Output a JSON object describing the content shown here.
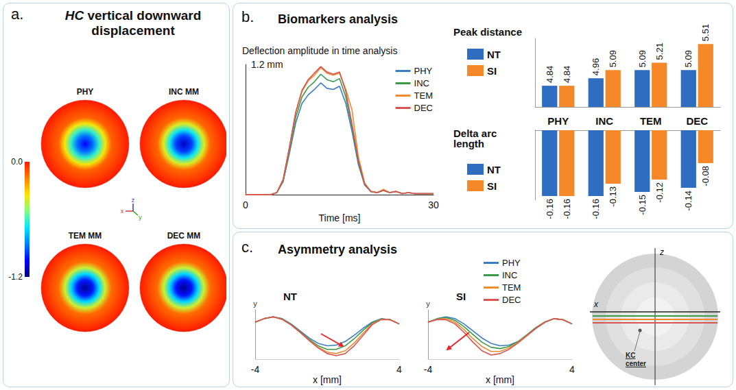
{
  "panels": [
    {
      "letter": "a.",
      "title": "HC vertical downward displacement"
    },
    {
      "letter": "b.",
      "title": "Biomarkers analysis"
    },
    {
      "letter": "c.",
      "title": "Asymmetry analysis"
    }
  ],
  "chart_data": [
    {
      "type": "heatmap",
      "discs": [
        {
          "name": "PHY",
          "value": -1.03
        },
        {
          "name": "INC MM",
          "value": -1.11
        },
        {
          "name": "TEM MM",
          "value": -1.17
        },
        {
          "name": "DEC MM",
          "value": -1.18
        }
      ],
      "colorbar": {
        "range": [
          -1.2,
          0
        ],
        "ticks": [
          {
            "value": 0,
            "label": "0.0"
          },
          -1.2
        ]
      },
      "axes": [
        "x",
        "y",
        "z"
      ]
    },
    {
      "type": "line",
      "title": "Deflection amplitude in time analysis",
      "x": [
        0,
        1,
        2,
        3,
        4,
        5,
        6,
        7,
        8,
        9,
        10,
        11,
        12,
        13,
        14,
        15,
        16,
        17,
        18,
        19,
        20,
        21,
        22,
        23,
        24,
        25,
        26,
        27,
        28,
        29,
        30
      ],
      "series": [
        {
          "name": "PHY",
          "color": "#3b7dc4",
          "values": [
            0,
            0,
            0,
            0,
            0,
            0.02,
            0.12,
            0.38,
            0.66,
            0.84,
            0.92,
            0.97,
            1.03,
            0.98,
            0.97,
            1.0,
            0.84,
            0.58,
            0.28,
            0.09,
            0.03,
            0.02,
            0.04,
            0.02,
            0.03,
            0.01,
            0.02,
            0.01,
            0.01,
            0.01,
            0.01
          ]
        },
        {
          "name": "INC",
          "color": "#3a9a48",
          "values": [
            0,
            0,
            0,
            0,
            0,
            0.02,
            0.13,
            0.41,
            0.71,
            0.9,
            0.99,
            1.04,
            1.11,
            1.06,
            1.04,
            1.07,
            0.9,
            0.62,
            0.3,
            0.1,
            0.03,
            0.02,
            0.04,
            0.02,
            0.03,
            0.01,
            0.02,
            0.01,
            0.01,
            0.01,
            0.01
          ]
        },
        {
          "name": "TEM",
          "color": "#f28a30",
          "values": [
            0,
            0,
            0,
            0,
            0,
            0.02,
            0.14,
            0.43,
            0.75,
            0.95,
            1.05,
            1.1,
            1.17,
            1.12,
            1.1,
            1.12,
            0.97,
            0.78,
            0.35,
            0.11,
            0.03,
            0.02,
            0.05,
            0.02,
            0.03,
            0.01,
            0.02,
            0.01,
            0.01,
            0.01,
            0.01
          ]
        },
        {
          "name": "DEC",
          "color": "#d9534f",
          "values": [
            0,
            0,
            0,
            0,
            0,
            0.02,
            0.14,
            0.44,
            0.76,
            0.96,
            1.06,
            1.12,
            1.18,
            1.13,
            1.11,
            1.13,
            0.95,
            0.65,
            0.32,
            0.1,
            0.03,
            0.02,
            0.04,
            0.02,
            0.03,
            0.01,
            0.02,
            0.01,
            0.01,
            0.01,
            0.01
          ]
        }
      ],
      "xlim": [
        0,
        30
      ],
      "xticks": [
        0,
        30
      ],
      "ylim": [
        0,
        1.2
      ],
      "yticks": [
        {
          "value": 1.2,
          "label": "1.2 mm"
        }
      ],
      "x_label": "Time [ms]",
      "legend": "upper right"
    },
    {
      "type": "bar",
      "title": "Peak distance",
      "categories": [
        "PHY",
        "INC",
        "TEM",
        "DEC"
      ],
      "series": [
        {
          "name": "NT",
          "color": "#2e6dc0",
          "values": [
            4.84,
            4.96,
            5.09,
            5.09
          ]
        },
        {
          "name": "SI",
          "color": "#f5892a",
          "values": [
            4.84,
            5.09,
            5.21,
            5.51
          ]
        }
      ],
      "ylim": [
        4.5,
        5.6
      ],
      "yticks": [],
      "tick_labels": false,
      "data_labels": true,
      "legend": "left"
    },
    {
      "type": "bar",
      "title": "Delta arc length",
      "categories": [
        "PHY",
        "INC",
        "TEM",
        "DEC"
      ],
      "series": [
        {
          "name": "NT",
          "color": "#2e6dc0",
          "values": [
            -0.16,
            -0.16,
            -0.15,
            -0.14
          ]
        },
        {
          "name": "SI",
          "color": "#f5892a",
          "values": [
            -0.16,
            -0.13,
            -0.12,
            -0.08
          ]
        }
      ],
      "ylim": [
        -0.17,
        0
      ],
      "yticks": [],
      "tick_labels": "x",
      "data_labels": true,
      "legend": "left"
    },
    {
      "type": "line",
      "title": "NT",
      "x": [
        -4,
        -3.5,
        -3,
        -2.5,
        -2,
        -1.5,
        -1,
        -0.5,
        0,
        0.5,
        1,
        1.5,
        2,
        2.5,
        3,
        3.5,
        4
      ],
      "series": [
        {
          "name": "PHY",
          "color": "#3b7dc4",
          "values": [
            0.05,
            0.15,
            0.2,
            0.15,
            0.0,
            -0.2,
            -0.4,
            -0.55,
            -0.62,
            -0.6,
            -0.5,
            -0.32,
            -0.12,
            0.05,
            0.15,
            0.12,
            0.0
          ]
        },
        {
          "name": "INC",
          "color": "#3a9a48",
          "values": [
            0.05,
            0.15,
            0.2,
            0.14,
            -0.02,
            -0.22,
            -0.44,
            -0.62,
            -0.72,
            -0.72,
            -0.62,
            -0.42,
            -0.18,
            0.03,
            0.14,
            0.12,
            0.0
          ]
        },
        {
          "name": "TEM",
          "color": "#f28a30",
          "values": [
            0.05,
            0.15,
            0.2,
            0.13,
            -0.03,
            -0.24,
            -0.46,
            -0.66,
            -0.8,
            -0.84,
            -0.76,
            -0.54,
            -0.26,
            0.0,
            0.13,
            0.12,
            0.0
          ]
        },
        {
          "name": "DEC",
          "color": "#d9534f",
          "values": [
            0.05,
            0.15,
            0.2,
            0.13,
            -0.03,
            -0.24,
            -0.47,
            -0.68,
            -0.84,
            -0.9,
            -0.84,
            -0.62,
            -0.32,
            -0.02,
            0.12,
            0.12,
            0.0
          ]
        }
      ],
      "xlim": [
        -4,
        4
      ],
      "xticks": [
        -4,
        4
      ],
      "ylim": [
        -1,
        0.4
      ],
      "yticks": [],
      "tick_labels": "x",
      "x_label": "x [mm]",
      "y_label": "y"
    },
    {
      "type": "line",
      "title": "SI",
      "x": [
        -4,
        -3.5,
        -3,
        -2.5,
        -2,
        -1.5,
        -1,
        -0.5,
        0,
        0.5,
        1,
        1.5,
        2,
        2.5,
        3,
        3.5,
        4
      ],
      "series": [
        {
          "name": "PHY",
          "color": "#3b7dc4",
          "values": [
            0.05,
            0.15,
            0.2,
            0.15,
            0.0,
            -0.2,
            -0.4,
            -0.55,
            -0.62,
            -0.6,
            -0.5,
            -0.32,
            -0.12,
            0.05,
            0.15,
            0.12,
            0.0
          ]
        },
        {
          "name": "INC",
          "color": "#3a9a48",
          "values": [
            0.05,
            0.14,
            0.18,
            0.1,
            -0.08,
            -0.3,
            -0.52,
            -0.66,
            -0.7,
            -0.64,
            -0.5,
            -0.3,
            -0.1,
            0.06,
            0.15,
            0.12,
            0.0
          ]
        },
        {
          "name": "TEM",
          "color": "#f28a30",
          "values": [
            0.05,
            0.13,
            0.15,
            0.05,
            -0.16,
            -0.42,
            -0.64,
            -0.78,
            -0.78,
            -0.68,
            -0.52,
            -0.32,
            -0.12,
            0.05,
            0.15,
            0.12,
            0.0
          ]
        },
        {
          "name": "DEC",
          "color": "#d9534f",
          "values": [
            0.05,
            0.12,
            0.12,
            0.0,
            -0.24,
            -0.52,
            -0.76,
            -0.88,
            -0.84,
            -0.72,
            -0.54,
            -0.33,
            -0.12,
            0.05,
            0.15,
            0.12,
            0.0
          ]
        }
      ],
      "xlim": [
        -4,
        4
      ],
      "xticks": [
        -4,
        4
      ],
      "ylim": [
        -1,
        0.4
      ],
      "yticks": [],
      "tick_labels": "x",
      "x_label": "x [mm]",
      "y_label": "y",
      "legend": "upper right"
    }
  ],
  "diagram": {
    "axis_labels": [
      "x",
      "z"
    ],
    "annotation": "KC center"
  }
}
